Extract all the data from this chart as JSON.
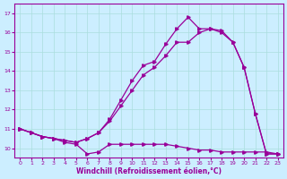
{
  "xlabel": "Windchill (Refroidissement éolien,°C)",
  "background_color": "#cceeff",
  "line_color": "#990099",
  "grid_color": "#aadddd",
  "ylim": [
    9.5,
    17.5
  ],
  "xlim": [
    -0.5,
    23.5
  ],
  "yticks": [
    10,
    11,
    12,
    13,
    14,
    15,
    16,
    17
  ],
  "xticks": [
    0,
    1,
    2,
    3,
    4,
    5,
    6,
    7,
    8,
    9,
    10,
    11,
    12,
    13,
    14,
    15,
    16,
    17,
    18,
    19,
    20,
    21,
    22,
    23
  ],
  "series": [
    {
      "x": [
        0,
        1,
        2,
        3,
        4,
        5,
        6,
        7,
        8,
        9,
        10,
        11,
        12,
        13,
        14,
        15,
        16,
        17,
        18,
        19,
        20,
        21,
        22,
        23
      ],
      "y": [
        11.0,
        10.8,
        10.6,
        10.5,
        10.4,
        10.3,
        10.5,
        10.8,
        11.5,
        12.5,
        13.5,
        14.3,
        14.5,
        15.4,
        16.2,
        16.8,
        16.2,
        16.2,
        16.1,
        15.5,
        14.2,
        11.8,
        9.7,
        9.7
      ]
    },
    {
      "x": [
        0,
        1,
        2,
        3,
        4,
        5,
        6,
        7,
        8,
        9,
        10,
        11,
        12,
        13,
        14,
        15,
        16,
        17,
        18,
        19,
        20,
        21,
        22,
        23
      ],
      "y": [
        11.0,
        10.8,
        10.6,
        10.5,
        10.4,
        10.3,
        10.5,
        10.8,
        11.4,
        12.2,
        13.0,
        13.8,
        14.2,
        14.8,
        15.5,
        15.5,
        16.0,
        16.2,
        16.0,
        15.5,
        14.2,
        11.8,
        9.7,
        9.7
      ]
    },
    {
      "x": [
        0,
        1,
        2,
        3,
        4,
        5,
        6,
        7,
        8,
        9,
        10,
        11,
        12,
        13,
        14,
        15,
        16,
        17,
        18,
        19,
        20,
        21,
        22,
        23
      ],
      "y": [
        11.0,
        10.8,
        10.6,
        10.5,
        10.3,
        10.2,
        9.7,
        9.8,
        10.2,
        10.2,
        10.2,
        10.2,
        10.2,
        10.2,
        10.1,
        10.0,
        9.9,
        9.9,
        9.8,
        9.8,
        9.8,
        9.8,
        9.8,
        9.7
      ]
    }
  ]
}
